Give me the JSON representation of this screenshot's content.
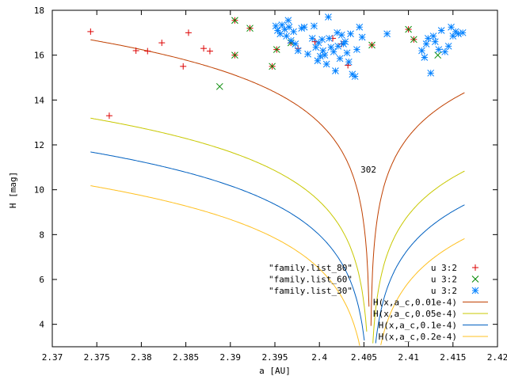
{
  "chart_data": {
    "type": "scatter",
    "title": "",
    "xlabel": "a [AU]",
    "ylabel": "H [mag]",
    "xlim": [
      2.37,
      2.42
    ],
    "ylim": [
      3,
      18
    ],
    "xticks": [
      "2.37",
      "2.375",
      "2.38",
      "2.385",
      "2.39",
      "2.395",
      "2.4",
      "2.405",
      "2.41",
      "2.415",
      "2.42"
    ],
    "yticks": [
      "4",
      "6",
      "8",
      "10",
      "12",
      "14",
      "16",
      "18"
    ],
    "grid": false,
    "legend_position": "bottom-right",
    "annotation": {
      "text": "302",
      "x": 2.4055,
      "y": 10.9
    },
    "file_labels": [
      "\"family.list_80\"",
      "\"family.list_60\"",
      "\"family.list_30\""
    ],
    "scatter_series": [
      {
        "name": "u 3:2",
        "marker": "plus",
        "color": "#dd0000",
        "points": [
          [
            2.3743,
            17.05
          ],
          [
            2.3764,
            13.3
          ],
          [
            2.3794,
            16.2
          ],
          [
            2.3807,
            16.18
          ],
          [
            2.3823,
            16.55
          ],
          [
            2.3847,
            15.5
          ],
          [
            2.3853,
            17.0
          ],
          [
            2.387,
            16.3
          ],
          [
            2.3877,
            16.18
          ],
          [
            2.3905,
            17.55
          ],
          [
            2.3905,
            16.0
          ],
          [
            2.3922,
            17.2
          ],
          [
            2.3947,
            15.5
          ],
          [
            2.3952,
            16.25
          ],
          [
            2.3968,
            16.55
          ],
          [
            2.3976,
            16.3
          ],
          [
            2.3995,
            16.6
          ],
          [
            2.4015,
            16.75
          ],
          [
            2.4025,
            16.5
          ],
          [
            2.4032,
            15.55
          ],
          [
            2.4059,
            16.45
          ],
          [
            2.41,
            17.15
          ],
          [
            2.4106,
            16.7
          ]
        ]
      },
      {
        "name": "u 3:2",
        "marker": "x",
        "color": "#008800",
        "points": [
          [
            2.3888,
            14.6
          ],
          [
            2.3905,
            17.55
          ],
          [
            2.3905,
            16.0
          ],
          [
            2.3922,
            17.2
          ],
          [
            2.3947,
            15.5
          ],
          [
            2.3952,
            16.25
          ],
          [
            2.3968,
            16.55
          ],
          [
            2.4059,
            16.45
          ],
          [
            2.41,
            17.15
          ],
          [
            2.4106,
            16.7
          ],
          [
            2.4133,
            16.0
          ]
        ]
      },
      {
        "name": "u 3:2",
        "marker": "star",
        "color": "#0080ff",
        "points": [
          [
            2.3951,
            17.3
          ],
          [
            2.3953,
            17.1
          ],
          [
            2.3956,
            16.95
          ],
          [
            2.3958,
            17.35
          ],
          [
            2.3961,
            17.15
          ],
          [
            2.3963,
            16.85
          ],
          [
            2.3965,
            17.55
          ],
          [
            2.3966,
            17.25
          ],
          [
            2.3968,
            16.65
          ],
          [
            2.3971,
            17.05
          ],
          [
            2.3973,
            16.5
          ],
          [
            2.3976,
            16.2
          ],
          [
            2.398,
            17.2
          ],
          [
            2.3983,
            17.25
          ],
          [
            2.3987,
            16.05
          ],
          [
            2.3992,
            16.75
          ],
          [
            2.3994,
            17.3
          ],
          [
            2.3996,
            16.35
          ],
          [
            2.3998,
            15.75
          ],
          [
            2.3999,
            16.55
          ],
          [
            2.4001,
            15.95
          ],
          [
            2.4003,
            16.7
          ],
          [
            2.4004,
            16.2
          ],
          [
            2.4006,
            16.0
          ],
          [
            2.4008,
            15.6
          ],
          [
            2.401,
            17.7
          ],
          [
            2.4011,
            16.75
          ],
          [
            2.4013,
            16.35
          ],
          [
            2.4016,
            16.15
          ],
          [
            2.4018,
            15.3
          ],
          [
            2.402,
            17.0
          ],
          [
            2.4021,
            16.4
          ],
          [
            2.4023,
            15.85
          ],
          [
            2.4025,
            16.9
          ],
          [
            2.4027,
            16.5
          ],
          [
            2.4029,
            16.6
          ],
          [
            2.4031,
            16.1
          ],
          [
            2.4033,
            15.7
          ],
          [
            2.4035,
            16.95
          ],
          [
            2.4037,
            15.15
          ],
          [
            2.404,
            15.05
          ],
          [
            2.4042,
            16.25
          ],
          [
            2.4045,
            17.25
          ],
          [
            2.4048,
            16.8
          ],
          [
            2.4076,
            16.95
          ],
          [
            2.4115,
            16.2
          ],
          [
            2.4118,
            15.9
          ],
          [
            2.412,
            16.5
          ],
          [
            2.4122,
            16.75
          ],
          [
            2.4125,
            15.2
          ],
          [
            2.4128,
            16.85
          ],
          [
            2.413,
            16.6
          ],
          [
            2.4134,
            16.25
          ],
          [
            2.4137,
            17.1
          ],
          [
            2.4141,
            16.15
          ],
          [
            2.4145,
            16.4
          ],
          [
            2.4148,
            17.25
          ],
          [
            2.415,
            16.85
          ],
          [
            2.4153,
            17.05
          ],
          [
            2.4156,
            16.95
          ],
          [
            2.4161,
            17.0
          ]
        ]
      }
    ],
    "curve_series": [
      {
        "name": "H(x,a_c,0.01e-4)",
        "color": "#c04000",
        "k": 0.01
      },
      {
        "name": "H(x,a_c,0.05e-4)",
        "color": "#c8c800",
        "k": 0.05
      },
      {
        "name": "H(x,a_c,0.1e-4)",
        "color": "#0060c0",
        "k": 0.1
      },
      {
        "name": "H(x,a_c,0.2e-4)",
        "color": "#ffc020",
        "k": 0.2
      }
    ],
    "curve_params": {
      "a_c": 2.4057,
      "x_range": [
        2.3743,
        2.4163
      ]
    }
  }
}
